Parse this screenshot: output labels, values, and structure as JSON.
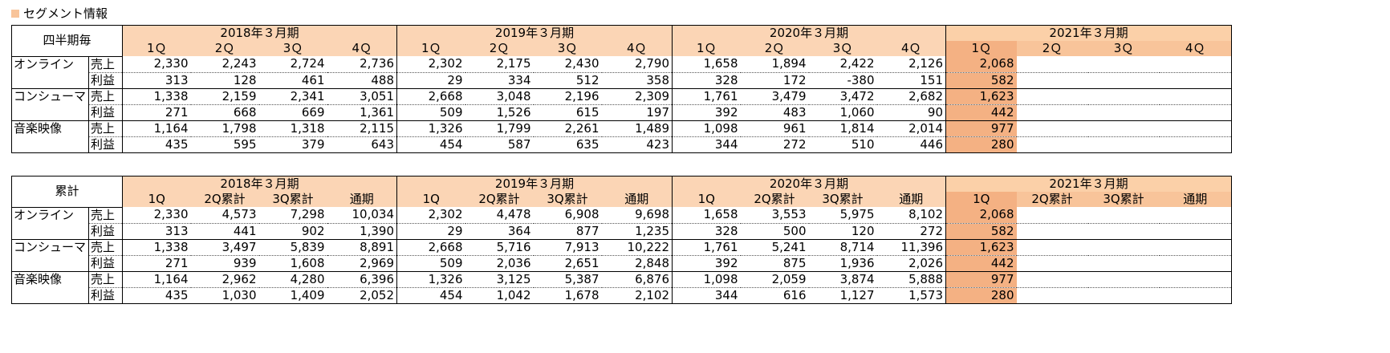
{
  "title": "セグメント情報",
  "segments": [
    "オンライン",
    "コンシューマ",
    "音楽映像"
  ],
  "metrics": [
    "売上",
    "利益"
  ],
  "years": [
    "2018年３月期",
    "2019年３月期",
    "2020年３月期",
    "2021年３月期"
  ],
  "quarterly": {
    "label": "四半期毎",
    "period_labels": [
      "1Ｑ",
      "2Ｑ",
      "3Ｑ",
      "4Ｑ"
    ],
    "rows": [
      [
        "2,330",
        "2,243",
        "2,724",
        "2,736",
        "2,302",
        "2,175",
        "2,430",
        "2,790",
        "1,658",
        "1,894",
        "2,422",
        "2,126",
        "2,068",
        "",
        "",
        ""
      ],
      [
        "313",
        "128",
        "461",
        "488",
        "29",
        "334",
        "512",
        "358",
        "328",
        "172",
        "-380",
        "151",
        "582",
        "",
        "",
        ""
      ],
      [
        "1,338",
        "2,159",
        "2,341",
        "3,051",
        "2,668",
        "3,048",
        "2,196",
        "2,309",
        "1,761",
        "3,479",
        "3,472",
        "2,682",
        "1,623",
        "",
        "",
        ""
      ],
      [
        "271",
        "668",
        "669",
        "1,361",
        "509",
        "1,526",
        "615",
        "197",
        "392",
        "483",
        "1,060",
        "90",
        "442",
        "",
        "",
        ""
      ],
      [
        "1,164",
        "1,798",
        "1,318",
        "2,115",
        "1,326",
        "1,799",
        "2,261",
        "1,489",
        "1,098",
        "961",
        "1,814",
        "2,014",
        "977",
        "",
        "",
        ""
      ],
      [
        "435",
        "595",
        "379",
        "643",
        "454",
        "587",
        "635",
        "423",
        "344",
        "272",
        "510",
        "446",
        "280",
        "",
        "",
        ""
      ]
    ]
  },
  "cumulative": {
    "label": "累計",
    "period_labels": [
      "1Q",
      "2Q累計",
      "3Q累計",
      "通期"
    ],
    "rows": [
      [
        "2,330",
        "4,573",
        "7,298",
        "10,034",
        "2,302",
        "4,478",
        "6,908",
        "9,698",
        "1,658",
        "3,553",
        "5,975",
        "8,102",
        "2,068",
        "",
        "",
        ""
      ],
      [
        "313",
        "441",
        "902",
        "1,390",
        "29",
        "364",
        "877",
        "1,235",
        "328",
        "500",
        "120",
        "272",
        "582",
        "",
        "",
        ""
      ],
      [
        "1,338",
        "3,497",
        "5,839",
        "8,891",
        "2,668",
        "5,716",
        "7,913",
        "10,222",
        "1,761",
        "5,241",
        "8,714",
        "11,396",
        "1,623",
        "",
        "",
        ""
      ],
      [
        "271",
        "939",
        "1,608",
        "2,969",
        "509",
        "2,036",
        "2,651",
        "2,848",
        "392",
        "875",
        "1,936",
        "2,026",
        "442",
        "",
        "",
        ""
      ],
      [
        "1,164",
        "2,962",
        "4,280",
        "6,396",
        "1,326",
        "3,125",
        "5,387",
        "6,876",
        "1,098",
        "2,059",
        "3,874",
        "5,888",
        "977",
        "",
        "",
        ""
      ],
      [
        "435",
        "1,030",
        "1,409",
        "2,052",
        "454",
        "1,042",
        "1,678",
        "2,102",
        "344",
        "616",
        "1,127",
        "1,573",
        "280",
        "",
        "",
        ""
      ]
    ]
  },
  "colors": {
    "header_fill": "#fbd5b5",
    "current_quarter_fill": "#f4b183",
    "legend_square": "#f8c49a"
  }
}
